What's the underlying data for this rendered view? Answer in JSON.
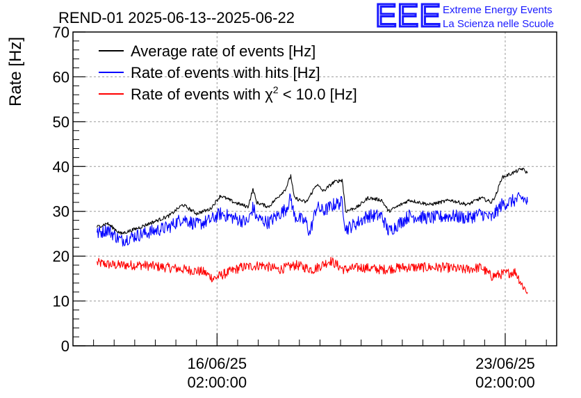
{
  "logo": {
    "mark": "EEE",
    "line1": "Extreme Energy Events",
    "line2": "La Scienza nelle Scuole",
    "color": "#1a1aff"
  },
  "chart_data": {
    "type": "line",
    "title": "REND-01 2025-06-13--2025-06-22",
    "ylabel": "Rate [Hz]",
    "xlabel": "",
    "ylim": [
      0,
      70
    ],
    "xlim": [
      "2025-06-12 14:00",
      "2025-06-24 08:00"
    ],
    "yticks": [
      0,
      10,
      20,
      30,
      40,
      50,
      60,
      70
    ],
    "xticks": [
      {
        "x": "2025-06-16 02:00",
        "label_date": "16/06/25",
        "label_time": "02:00:00"
      },
      {
        "x": "2025-06-23 02:00",
        "label_date": "23/06/25",
        "label_time": "02:00:00"
      }
    ],
    "grid": true,
    "legend_position": "top-left",
    "legend": {
      "avg": "Average rate of events [Hz]",
      "hits": "Rate of events with hits [Hz]",
      "chi_prefix": "Rate of events with ",
      "chi_symbol": "χ",
      "chi_sup": "2",
      "chi_suffix": " < 10.0 [Hz]"
    },
    "series": [
      {
        "name": "Average rate of events [Hz]",
        "color": "#000000",
        "noise": 0.4,
        "points": [
          [
            "2025-06-13 04:00",
            26.5
          ],
          [
            "2025-06-13 10:00",
            27.3
          ],
          [
            "2025-06-13 18:00",
            25.0
          ],
          [
            "2025-06-14 02:00",
            26.0
          ],
          [
            "2025-06-14 12:00",
            27.5
          ],
          [
            "2025-06-14 22:00",
            29.0
          ],
          [
            "2025-06-15 06:00",
            31.5
          ],
          [
            "2025-06-15 14:00",
            29.5
          ],
          [
            "2025-06-15 22:00",
            30.5
          ],
          [
            "2025-06-16 04:00",
            33.5
          ],
          [
            "2025-06-16 12:00",
            32.0
          ],
          [
            "2025-06-16 20:00",
            31.0
          ],
          [
            "2025-06-16 23:00",
            35.0
          ],
          [
            "2025-06-17 01:00",
            32.0
          ],
          [
            "2025-06-17 08:00",
            31.0
          ],
          [
            "2025-06-17 18:00",
            35.0
          ],
          [
            "2025-06-17 21:00",
            38.0
          ],
          [
            "2025-06-17 23:00",
            33.0
          ],
          [
            "2025-06-18 06:00",
            32.0
          ],
          [
            "2025-06-18 12:00",
            36.0
          ],
          [
            "2025-06-18 16:00",
            34.5
          ],
          [
            "2025-06-18 22:00",
            36.5
          ],
          [
            "2025-06-19 03:00",
            37.0
          ],
          [
            "2025-06-19 05:00",
            30.0
          ],
          [
            "2025-06-19 12:00",
            31.0
          ],
          [
            "2025-06-19 18:00",
            33.0
          ],
          [
            "2025-06-20 02:00",
            32.5
          ],
          [
            "2025-06-20 06:00",
            30.0
          ],
          [
            "2025-06-20 18:00",
            32.5
          ],
          [
            "2025-06-21 06:00",
            31.5
          ],
          [
            "2025-06-21 18:00",
            32.5
          ],
          [
            "2025-06-22 04:00",
            31.5
          ],
          [
            "2025-06-22 12:00",
            33.0
          ],
          [
            "2025-06-22 18:00",
            32.0
          ],
          [
            "2025-06-22 21:00",
            34.0
          ],
          [
            "2025-06-23 00:00",
            37.5
          ],
          [
            "2025-06-23 12:00",
            39.5
          ],
          [
            "2025-06-23 15:00",
            38.5
          ]
        ]
      },
      {
        "name": "Rate of events with hits [Hz]",
        "color": "#0000ff",
        "noise": 1.5,
        "points": [
          [
            "2025-06-13 04:00",
            25.0
          ],
          [
            "2025-06-13 10:00",
            26.0
          ],
          [
            "2025-06-13 18:00",
            23.5
          ],
          [
            "2025-06-14 02:00",
            24.5
          ],
          [
            "2025-06-14 12:00",
            25.5
          ],
          [
            "2025-06-14 22:00",
            26.5
          ],
          [
            "2025-06-15 06:00",
            28.5
          ],
          [
            "2025-06-15 14:00",
            27.0
          ],
          [
            "2025-06-15 22:00",
            28.0
          ],
          [
            "2025-06-16 04:00",
            29.5
          ],
          [
            "2025-06-16 12:00",
            28.5
          ],
          [
            "2025-06-16 20:00",
            27.5
          ],
          [
            "2025-06-16 23:00",
            31.0
          ],
          [
            "2025-06-17 01:00",
            28.5
          ],
          [
            "2025-06-17 08:00",
            27.5
          ],
          [
            "2025-06-17 18:00",
            30.5
          ],
          [
            "2025-06-17 21:00",
            33.0
          ],
          [
            "2025-06-17 23:00",
            29.0
          ],
          [
            "2025-06-18 06:00",
            27.5
          ],
          [
            "2025-06-18 08:00",
            25.0
          ],
          [
            "2025-06-18 12:00",
            31.0
          ],
          [
            "2025-06-18 16:00",
            30.0
          ],
          [
            "2025-06-18 22:00",
            31.5
          ],
          [
            "2025-06-19 03:00",
            32.0
          ],
          [
            "2025-06-19 05:00",
            26.0
          ],
          [
            "2025-06-19 12:00",
            27.5
          ],
          [
            "2025-06-19 18:00",
            29.0
          ],
          [
            "2025-06-20 02:00",
            29.0
          ],
          [
            "2025-06-20 06:00",
            25.5
          ],
          [
            "2025-06-20 18:00",
            29.0
          ],
          [
            "2025-06-21 06:00",
            28.5
          ],
          [
            "2025-06-21 18:00",
            29.0
          ],
          [
            "2025-06-22 04:00",
            28.5
          ],
          [
            "2025-06-22 12:00",
            29.5
          ],
          [
            "2025-06-22 18:00",
            28.5
          ],
          [
            "2025-06-22 21:00",
            30.0
          ],
          [
            "2025-06-23 00:00",
            31.5
          ],
          [
            "2025-06-23 12:00",
            33.0
          ],
          [
            "2025-06-23 15:00",
            32.0
          ]
        ]
      },
      {
        "name": "Rate of events with χ² < 10.0 [Hz]",
        "color": "#ff0000",
        "noise": 1.1,
        "points": [
          [
            "2025-06-13 04:00",
            18.5
          ],
          [
            "2025-06-13 14:00",
            18.0
          ],
          [
            "2025-06-14 06:00",
            18.0
          ],
          [
            "2025-06-14 20:00",
            17.5
          ],
          [
            "2025-06-15 08:00",
            17.0
          ],
          [
            "2025-06-15 18:00",
            16.5
          ],
          [
            "2025-06-16 00:00",
            15.0
          ],
          [
            "2025-06-16 06:00",
            16.0
          ],
          [
            "2025-06-16 16:00",
            17.5
          ],
          [
            "2025-06-17 04:00",
            18.0
          ],
          [
            "2025-06-17 14:00",
            17.0
          ],
          [
            "2025-06-18 00:00",
            18.0
          ],
          [
            "2025-06-18 10:00",
            17.0
          ],
          [
            "2025-06-18 20:00",
            19.0
          ],
          [
            "2025-06-19 04:00",
            17.0
          ],
          [
            "2025-06-19 14:00",
            17.5
          ],
          [
            "2025-06-20 02:00",
            17.0
          ],
          [
            "2025-06-20 14:00",
            17.5
          ],
          [
            "2025-06-21 02:00",
            17.5
          ],
          [
            "2025-06-21 14:00",
            17.5
          ],
          [
            "2025-06-22 02:00",
            17.0
          ],
          [
            "2025-06-22 12:00",
            17.5
          ],
          [
            "2025-06-22 18:00",
            15.5
          ],
          [
            "2025-06-23 00:00",
            16.0
          ],
          [
            "2025-06-23 08:00",
            16.5
          ],
          [
            "2025-06-23 12:00",
            13.5
          ],
          [
            "2025-06-23 15:00",
            12.0
          ]
        ]
      }
    ]
  }
}
